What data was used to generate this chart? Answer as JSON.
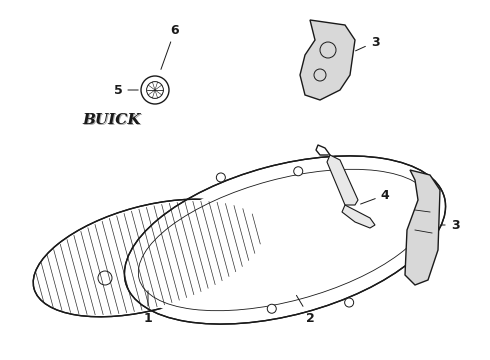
{
  "bg_color": "#ffffff",
  "line_color": "#1a1a1a",
  "label_color": "#000000",
  "lw_main": 1.0,
  "lw_thin": 0.6,
  "lw_hatch": 0.5,
  "font_size_labels": 9
}
